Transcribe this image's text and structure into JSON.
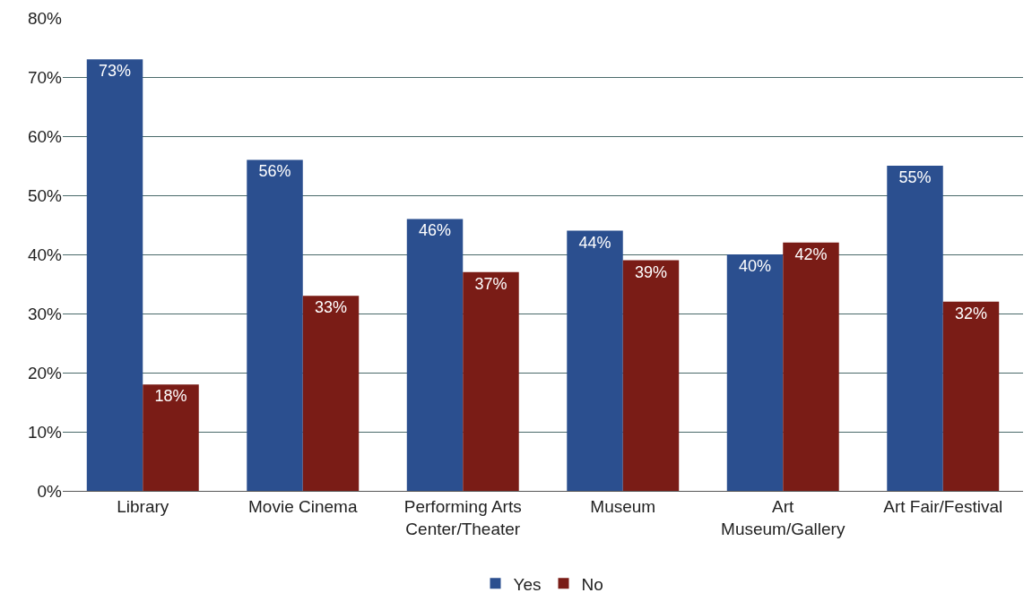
{
  "chart_data": {
    "type": "bar",
    "categories": [
      "Library",
      "Movie Cinema",
      "Performing Arts Center/Theater",
      "Museum",
      "Art Museum/Gallery",
      "Art Fair/Festival"
    ],
    "series": [
      {
        "name": "Yes",
        "color": "#2b4f8f",
        "values": [
          73,
          56,
          46,
          44,
          40,
          55
        ],
        "value_labels": [
          "73%",
          "56%",
          "46%",
          "44%",
          "40%",
          "55%"
        ]
      },
      {
        "name": "No",
        "color": "#7a1c16",
        "values": [
          18,
          33,
          37,
          39,
          42,
          32
        ],
        "value_labels": [
          "18%",
          "33%",
          "37%",
          "39%",
          "42%",
          "32%"
        ]
      }
    ],
    "ylim": [
      0,
      80
    ],
    "yticks": [
      {
        "value": 0,
        "label": "0%"
      },
      {
        "value": 10,
        "label": "10%"
      },
      {
        "value": 20,
        "label": "20%"
      },
      {
        "value": 30,
        "label": "30%"
      },
      {
        "value": 40,
        "label": "40%"
      },
      {
        "value": 50,
        "label": "50%"
      },
      {
        "value": 60,
        "label": "60%"
      },
      {
        "value": 70,
        "label": "70%"
      },
      {
        "value": 80,
        "label": "80%"
      }
    ],
    "grid": "y",
    "legend": "bottom"
  }
}
